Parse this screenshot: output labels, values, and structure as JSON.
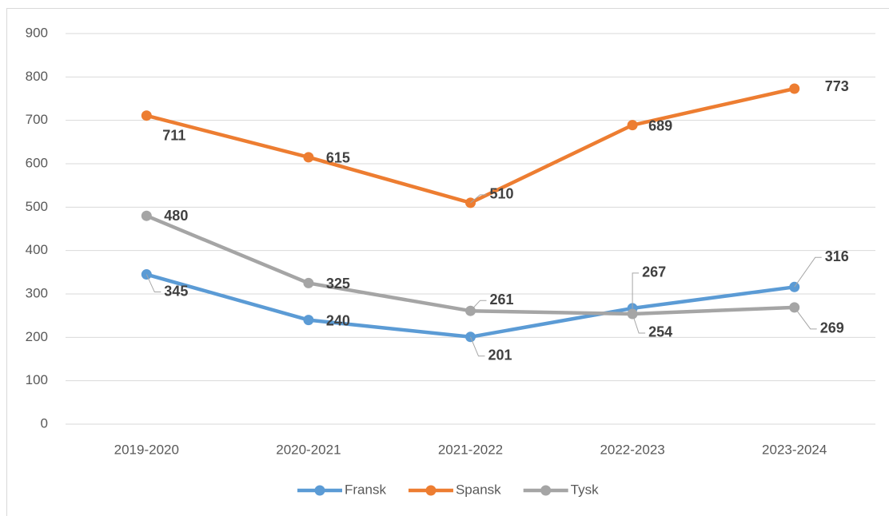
{
  "chart_data": {
    "type": "line",
    "categories": [
      "2019-2020",
      "2020-2021",
      "2021-2022",
      "2022-2023",
      "2023-2024"
    ],
    "series": [
      {
        "name": "Fransk",
        "color": "#5b9bd5",
        "values": [
          345,
          240,
          201,
          267,
          316
        ]
      },
      {
        "name": "Spansk",
        "color": "#ed7d31",
        "values": [
          711,
          615,
          510,
          689,
          773
        ]
      },
      {
        "name": "Tysk",
        "color": "#a5a5a5",
        "values": [
          480,
          325,
          261,
          254,
          269
        ]
      }
    ],
    "ylim": [
      0,
      900
    ],
    "yticks": [
      0,
      100,
      200,
      300,
      400,
      500,
      600,
      700,
      800,
      900
    ],
    "grid": true,
    "legend": "bottom"
  }
}
